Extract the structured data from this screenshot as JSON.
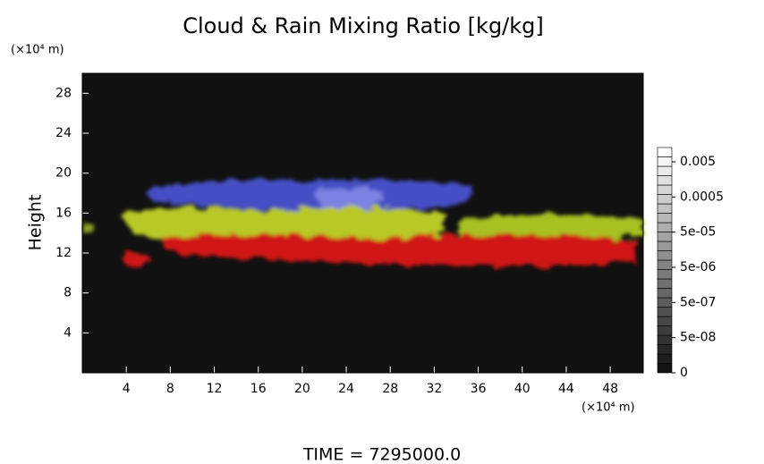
{
  "chart_data": {
    "type": "volume",
    "title": "Cloud & Rain Mixing Ratio [kg/kg]",
    "y_label": "Height",
    "x_unit": "(×10⁴ m)",
    "y_unit": "(×10⁴ m)",
    "footer": "TIME = 7295000.0",
    "xlim": [
      0,
      51
    ],
    "xticks": [
      4,
      8,
      12,
      16,
      20,
      24,
      28,
      32,
      36,
      40,
      44,
      48
    ],
    "ylim": [
      0,
      30
    ],
    "yticks": [
      4,
      8,
      12,
      16,
      20,
      24,
      28
    ],
    "colorbar_ticks": [
      0.005,
      0.0005,
      {
        "value": 5e-05,
        "label": "5e-05"
      },
      {
        "value": 5e-06,
        "label": "5e-06"
      },
      {
        "value": 5e-07,
        "label": "5e-07"
      },
      {
        "value": 5e-08,
        "label": "5e-08"
      },
      0
    ]
  }
}
